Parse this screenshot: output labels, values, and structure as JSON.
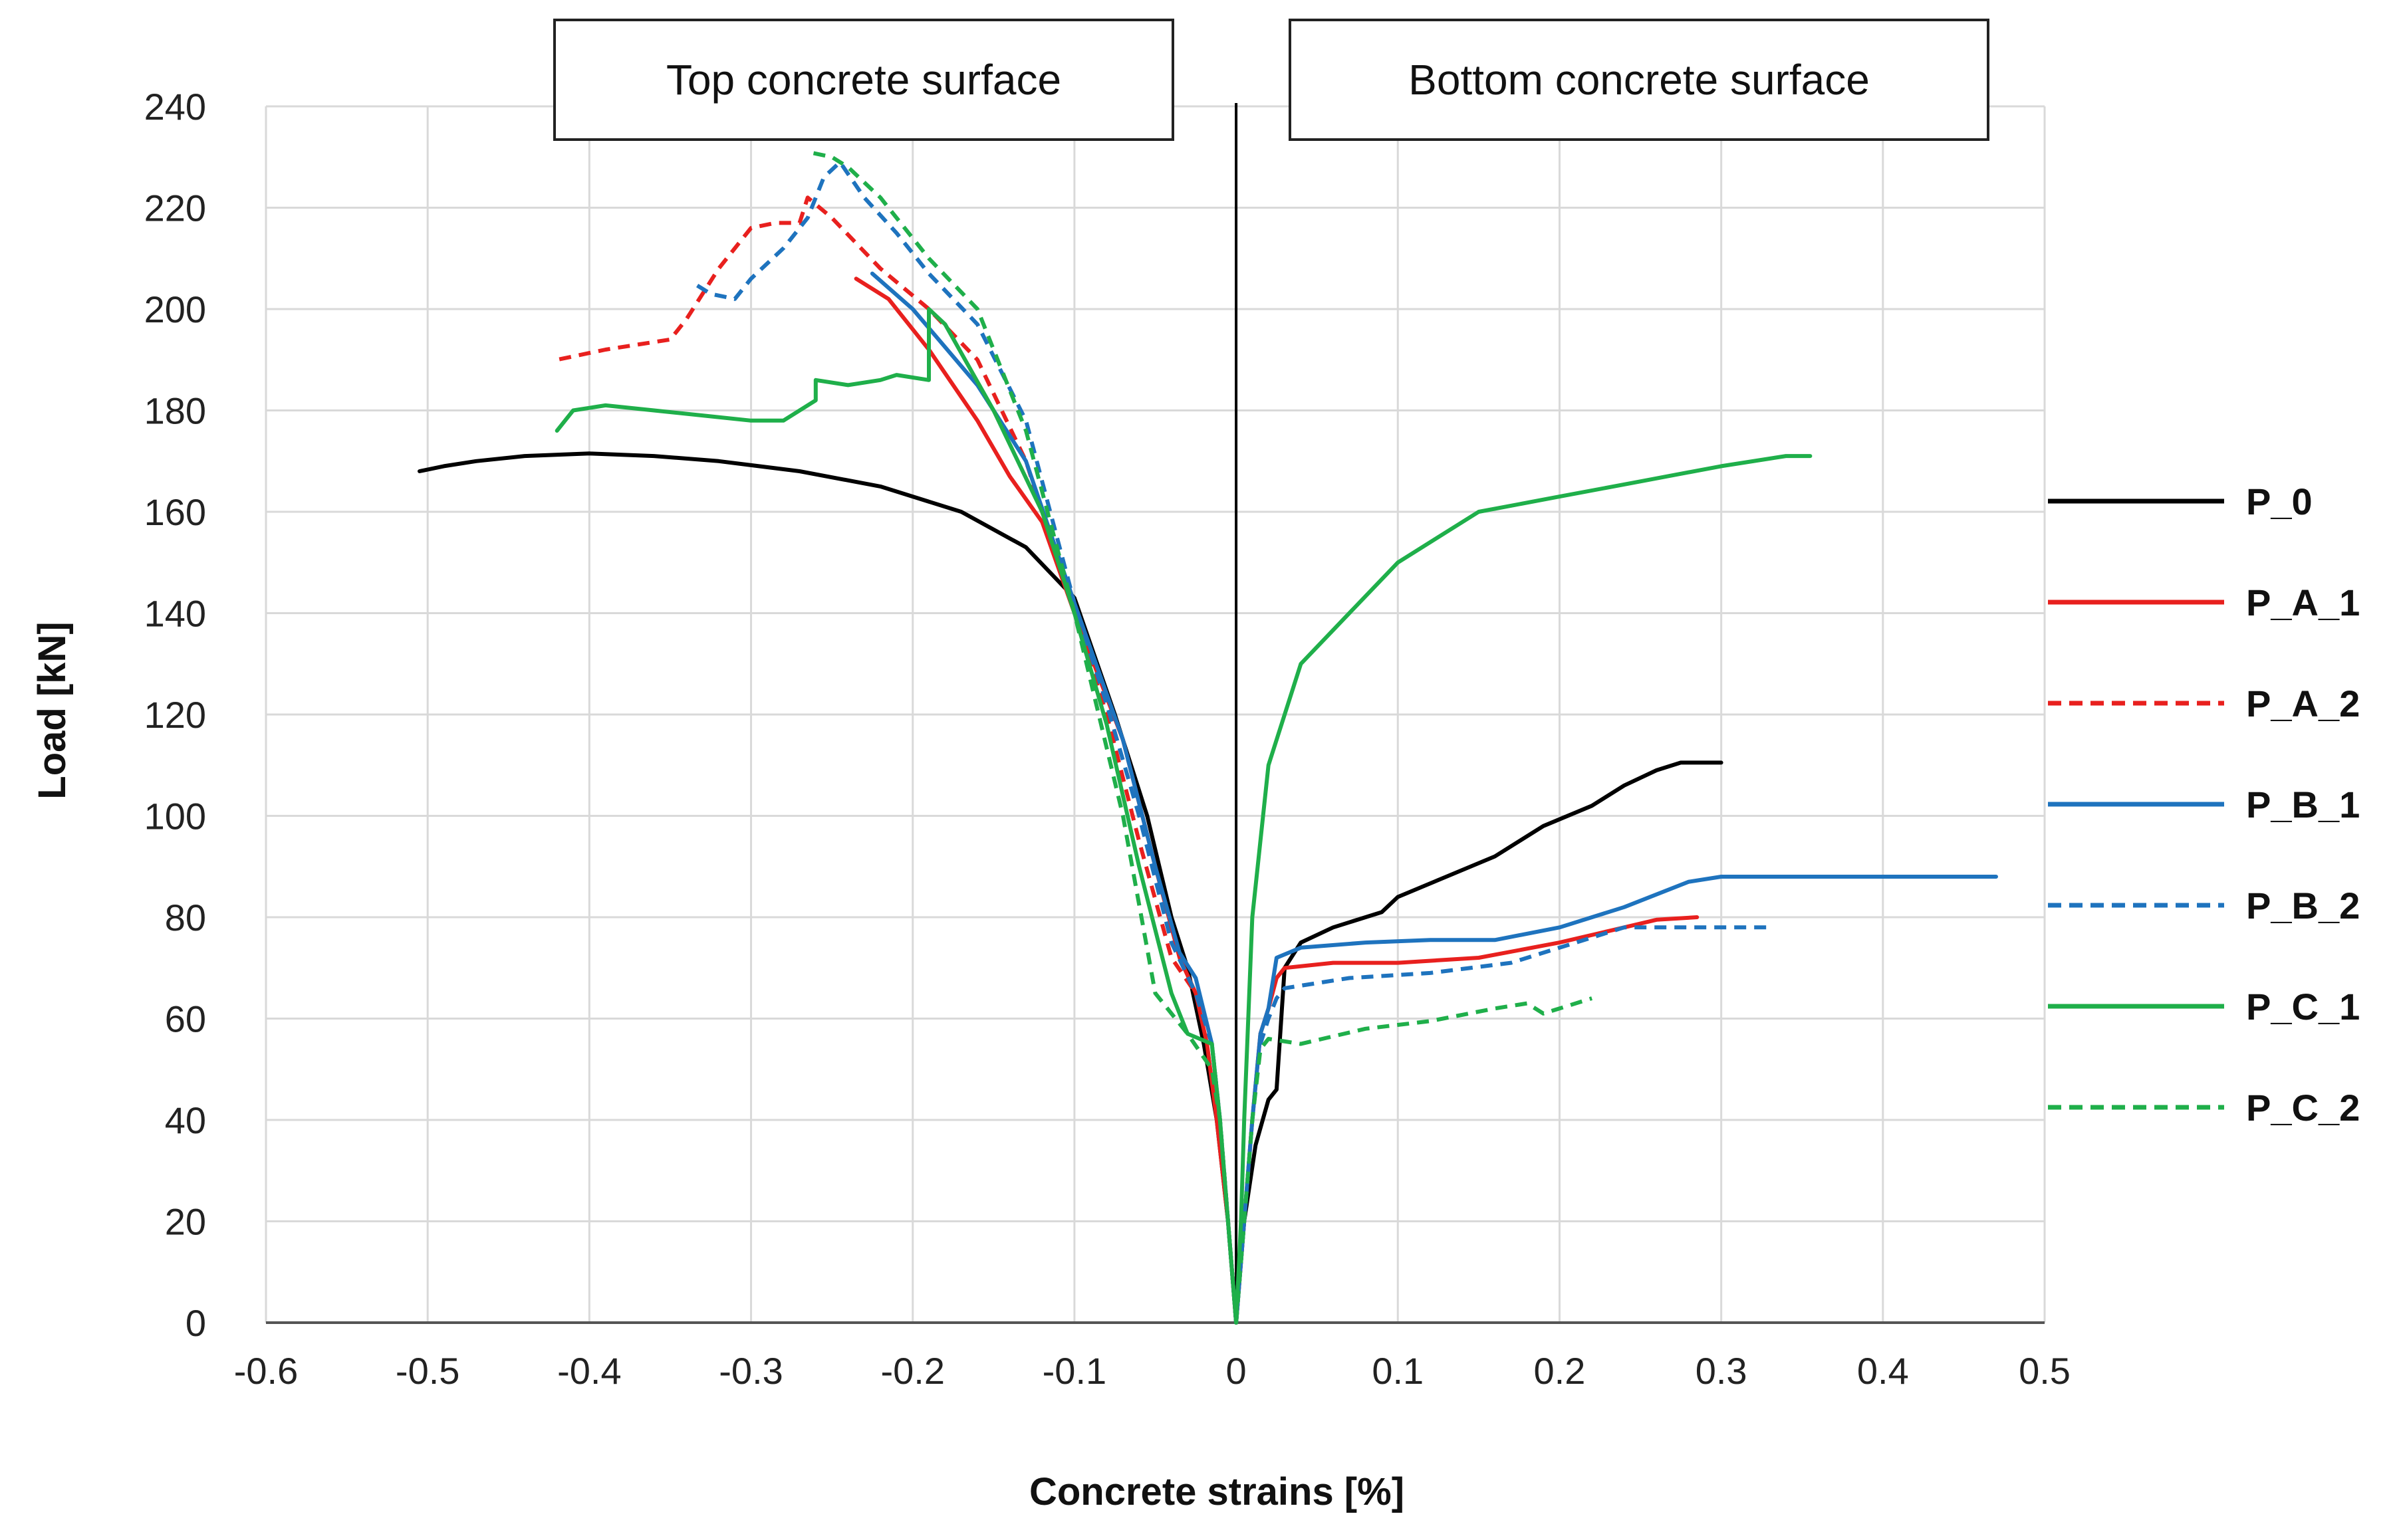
{
  "chart_data": {
    "type": "line",
    "title": "",
    "xlabel": "Concrete strains [%]",
    "ylabel": "Load [kN]",
    "xlim": [
      -0.6,
      0.5
    ],
    "ylim": [
      0,
      240
    ],
    "xticks": [
      -0.6,
      -0.5,
      -0.4,
      -0.3,
      -0.2,
      -0.1,
      0,
      0.1,
      0.2,
      0.3,
      0.4,
      0.5
    ],
    "xtick_labels": [
      "-0.6",
      "-0.5",
      "-0.4",
      "-0.3",
      "-0.2",
      "-0.1",
      "0",
      "0.1",
      "0.2",
      "0.3",
      "0.4",
      "0.5"
    ],
    "yticks": [
      0,
      20,
      40,
      60,
      80,
      100,
      120,
      140,
      160,
      180,
      200,
      220,
      240
    ],
    "ytick_labels": [
      "0",
      "20",
      "40",
      "60",
      "80",
      "100",
      "120",
      "140",
      "160",
      "180",
      "200",
      "220",
      "240"
    ],
    "grid": true,
    "legend_position": "right",
    "annotations": [
      {
        "text": "Top concrete surface",
        "region": "compression"
      },
      {
        "text": "Bottom concrete surface",
        "region": "tension"
      }
    ],
    "series": [
      {
        "name": "P_0",
        "color": "#000000",
        "dash": "solid",
        "segments": [
          [
            [
              0,
              0
            ],
            [
              -0.005,
              20
            ],
            [
              -0.012,
              40
            ],
            [
              -0.02,
              55
            ],
            [
              -0.03,
              70
            ],
            [
              -0.04,
              80
            ],
            [
              -0.055,
              100
            ],
            [
              -0.075,
              120
            ],
            [
              -0.1,
              143
            ],
            [
              -0.13,
              153
            ],
            [
              -0.17,
              160
            ],
            [
              -0.22,
              165
            ],
            [
              -0.27,
              168
            ],
            [
              -0.32,
              170
            ],
            [
              -0.36,
              171
            ],
            [
              -0.4,
              171.5
            ],
            [
              -0.44,
              171
            ],
            [
              -0.47,
              170
            ],
            [
              -0.49,
              169
            ],
            [
              -0.505,
              168
            ]
          ],
          [
            [
              0,
              0
            ],
            [
              0.005,
              20
            ],
            [
              0.012,
              35
            ],
            [
              0.02,
              44
            ],
            [
              0.025,
              46
            ],
            [
              0.03,
              70
            ],
            [
              0.04,
              75
            ],
            [
              0.06,
              78
            ],
            [
              0.09,
              81
            ],
            [
              0.1,
              84
            ],
            [
              0.13,
              88
            ],
            [
              0.16,
              92
            ],
            [
              0.19,
              98
            ],
            [
              0.22,
              102
            ],
            [
              0.24,
              106
            ],
            [
              0.26,
              109
            ],
            [
              0.275,
              110.5
            ],
            [
              0.3,
              110.5
            ]
          ]
        ]
      },
      {
        "name": "P_A_1",
        "color": "#e8201e",
        "dash": "solid",
        "segments": [
          [
            [
              0,
              0
            ],
            [
              -0.005,
              20
            ],
            [
              -0.012,
              40
            ],
            [
              -0.018,
              55
            ],
            [
              -0.025,
              65
            ],
            [
              -0.035,
              72
            ],
            [
              -0.05,
              90
            ],
            [
              -0.07,
              115
            ],
            [
              -0.1,
              140
            ],
            [
              -0.12,
              158
            ],
            [
              -0.14,
              167
            ],
            [
              -0.16,
              178
            ],
            [
              -0.19,
              192
            ],
            [
              -0.215,
              202
            ],
            [
              -0.235,
              206
            ]
          ],
          [
            [
              0,
              0
            ],
            [
              0.005,
              20
            ],
            [
              0.01,
              40
            ],
            [
              0.015,
              57
            ],
            [
              0.02,
              62
            ],
            [
              0.025,
              68
            ],
            [
              0.03,
              70
            ],
            [
              0.06,
              71
            ],
            [
              0.1,
              71
            ],
            [
              0.15,
              72
            ],
            [
              0.2,
              75
            ],
            [
              0.24,
              78
            ],
            [
              0.26,
              79.5
            ],
            [
              0.285,
              80
            ]
          ]
        ]
      },
      {
        "name": "P_A_2",
        "color": "#e8201e",
        "dash": "dashed",
        "segments": [
          [
            [
              0,
              0
            ],
            [
              -0.005,
              20
            ],
            [
              -0.01,
              40
            ],
            [
              -0.015,
              55
            ],
            [
              -0.025,
              65
            ],
            [
              -0.04,
              72
            ],
            [
              -0.06,
              95
            ],
            [
              -0.08,
              120
            ],
            [
              -0.1,
              140
            ],
            [
              -0.13,
              170
            ],
            [
              -0.16,
              190
            ],
            [
              -0.19,
              200
            ],
            [
              -0.22,
              208
            ],
            [
              -0.25,
              218
            ],
            [
              -0.265,
              222
            ],
            [
              -0.27,
              217
            ],
            [
              -0.285,
              217
            ],
            [
              -0.3,
              216
            ],
            [
              -0.32,
              208
            ],
            [
              -0.34,
              198
            ],
            [
              -0.35,
              194
            ],
            [
              -0.37,
              193
            ],
            [
              -0.39,
              192
            ],
            [
              -0.42,
              190
            ]
          ]
        ]
      },
      {
        "name": "P_B_1",
        "color": "#1e73be",
        "dash": "solid",
        "segments": [
          [
            [
              0,
              0
            ],
            [
              -0.005,
              20
            ],
            [
              -0.01,
              40
            ],
            [
              -0.015,
              55
            ],
            [
              -0.025,
              68
            ],
            [
              -0.035,
              73
            ],
            [
              -0.05,
              90
            ],
            [
              -0.07,
              115
            ],
            [
              -0.1,
              142
            ],
            [
              -0.13,
              170
            ],
            [
              -0.16,
              185
            ],
            [
              -0.2,
              200
            ],
            [
              -0.225,
              207
            ]
          ],
          [
            [
              0,
              0
            ],
            [
              0.005,
              20
            ],
            [
              0.01,
              40
            ],
            [
              0.015,
              57
            ],
            [
              0.02,
              62
            ],
            [
              0.025,
              72
            ],
            [
              0.04,
              74
            ],
            [
              0.08,
              75
            ],
            [
              0.12,
              75.5
            ],
            [
              0.16,
              75.5
            ],
            [
              0.2,
              78
            ],
            [
              0.24,
              82
            ],
            [
              0.28,
              87
            ],
            [
              0.3,
              88
            ],
            [
              0.4,
              88
            ],
            [
              0.47,
              88
            ]
          ]
        ]
      },
      {
        "name": "P_B_2",
        "color": "#1e73be",
        "dash": "dashed",
        "segments": [
          [
            [
              0,
              0
            ],
            [
              -0.005,
              20
            ],
            [
              -0.01,
              40
            ],
            [
              -0.015,
              55
            ],
            [
              -0.025,
              65
            ],
            [
              -0.04,
              75
            ],
            [
              -0.06,
              100
            ],
            [
              -0.08,
              122
            ],
            [
              -0.1,
              142
            ],
            [
              -0.13,
              178
            ],
            [
              -0.16,
              197
            ],
            [
              -0.19,
              207
            ],
            [
              -0.21,
              215
            ],
            [
              -0.23,
              222
            ],
            [
              -0.245,
              229
            ],
            [
              -0.255,
              226
            ],
            [
              -0.265,
              218
            ],
            [
              -0.28,
              212
            ],
            [
              -0.3,
              206
            ],
            [
              -0.31,
              202
            ],
            [
              -0.325,
              203
            ],
            [
              -0.335,
              205
            ]
          ],
          [
            [
              0,
              0
            ],
            [
              0.005,
              20
            ],
            [
              0.01,
              40
            ],
            [
              0.015,
              55
            ],
            [
              0.02,
              60
            ],
            [
              0.025,
              64
            ],
            [
              0.03,
              66
            ],
            [
              0.07,
              68
            ],
            [
              0.12,
              69
            ],
            [
              0.17,
              71
            ],
            [
              0.2,
              74
            ],
            [
              0.24,
              78
            ],
            [
              0.28,
              78
            ],
            [
              0.33,
              78
            ]
          ]
        ]
      },
      {
        "name": "P_C_1",
        "color": "#1faf4a",
        "dash": "solid",
        "segments": [
          [
            [
              0,
              0
            ],
            [
              -0.005,
              20
            ],
            [
              -0.01,
              40
            ],
            [
              -0.015,
              55
            ],
            [
              -0.03,
              57
            ],
            [
              -0.04,
              65
            ],
            [
              -0.06,
              90
            ],
            [
              -0.08,
              118
            ],
            [
              -0.1,
              140
            ],
            [
              -0.12,
              160
            ],
            [
              -0.15,
              180
            ],
            [
              -0.18,
              197
            ],
            [
              -0.19,
              200
            ],
            [
              -0.19,
              186
            ],
            [
              -0.21,
              187
            ],
            [
              -0.22,
              186
            ],
            [
              -0.24,
              185
            ],
            [
              -0.26,
              186
            ],
            [
              -0.26,
              182
            ],
            [
              -0.28,
              178
            ],
            [
              -0.3,
              178
            ],
            [
              -0.33,
              179
            ],
            [
              -0.36,
              180
            ],
            [
              -0.39,
              181
            ],
            [
              -0.41,
              180
            ],
            [
              -0.42,
              176
            ]
          ],
          [
            [
              0,
              0
            ],
            [
              0.003,
              20
            ],
            [
              0.005,
              40
            ],
            [
              0.007,
              56
            ],
            [
              0.01,
              80
            ],
            [
              0.02,
              110
            ],
            [
              0.04,
              130
            ],
            [
              0.07,
              140
            ],
            [
              0.1,
              150
            ],
            [
              0.15,
              160
            ],
            [
              0.2,
              163
            ],
            [
              0.25,
              166
            ],
            [
              0.3,
              169
            ],
            [
              0.34,
              171
            ],
            [
              0.355,
              171
            ]
          ]
        ]
      },
      {
        "name": "P_C_2",
        "color": "#1faf4a",
        "dash": "dashed",
        "segments": [
          [
            [
              0,
              0
            ],
            [
              -0.005,
              20
            ],
            [
              -0.01,
              40
            ],
            [
              -0.015,
              50
            ],
            [
              -0.03,
              57
            ],
            [
              -0.05,
              65
            ],
            [
              -0.07,
              100
            ],
            [
              -0.1,
              140
            ],
            [
              -0.13,
              176
            ],
            [
              -0.16,
              200
            ],
            [
              -0.19,
              210
            ],
            [
              -0.22,
              222
            ],
            [
              -0.24,
              228
            ],
            [
              -0.25,
              230
            ],
            [
              -0.265,
              231
            ]
          ],
          [
            [
              0,
              0
            ],
            [
              0.005,
              20
            ],
            [
              0.01,
              40
            ],
            [
              0.015,
              54
            ],
            [
              0.02,
              56
            ],
            [
              0.04,
              55
            ],
            [
              0.08,
              58
            ],
            [
              0.12,
              59.5
            ],
            [
              0.16,
              62
            ],
            [
              0.18,
              63
            ],
            [
              0.19,
              61
            ],
            [
              0.2,
              62
            ],
            [
              0.22,
              64
            ]
          ]
        ]
      }
    ]
  }
}
